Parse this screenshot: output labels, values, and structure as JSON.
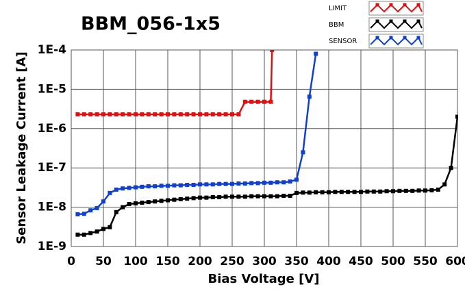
{
  "chart_data": {
    "type": "line",
    "title": "BBM_056-1x5",
    "x_label": "Bias Voltage [V]",
    "y_label": "Sensor Leakage Current [A]",
    "ylog": true,
    "grid": true,
    "legend": "top-right",
    "xlim": [
      0,
      600
    ],
    "xticks": [
      0,
      50,
      100,
      150,
      200,
      250,
      300,
      350,
      400,
      450,
      500,
      550,
      600
    ],
    "ylim": [
      1e-09,
      0.0001
    ],
    "yticks": [
      {
        "value": 1e-09,
        "label": "1E-9"
      },
      {
        "value": 1e-08,
        "label": "1E-8"
      },
      {
        "value": 1e-07,
        "label": "1E-7"
      },
      {
        "value": 1e-06,
        "label": "1E-6"
      },
      {
        "value": 1e-05,
        "label": "1E-5"
      },
      {
        "value": 0.0001,
        "label": "1E-4"
      }
    ],
    "series": [
      {
        "name": "LIMIT",
        "color": "#e01010",
        "x": [
          10,
          20,
          30,
          40,
          50,
          60,
          70,
          80,
          90,
          100,
          110,
          120,
          130,
          140,
          150,
          160,
          170,
          180,
          190,
          200,
          210,
          220,
          230,
          240,
          250,
          260,
          270,
          280,
          290,
          300,
          310,
          312
        ],
        "values": [
          2.3e-06,
          2.3e-06,
          2.3e-06,
          2.3e-06,
          2.3e-06,
          2.3e-06,
          2.3e-06,
          2.3e-06,
          2.3e-06,
          2.3e-06,
          2.3e-06,
          2.3e-06,
          2.3e-06,
          2.3e-06,
          2.3e-06,
          2.3e-06,
          2.3e-06,
          2.3e-06,
          2.3e-06,
          2.3e-06,
          2.3e-06,
          2.3e-06,
          2.3e-06,
          2.3e-06,
          2.3e-06,
          2.3e-06,
          4.8e-06,
          4.8e-06,
          4.8e-06,
          4.8e-06,
          4.8e-06,
          0.0001
        ]
      },
      {
        "name": "BBM",
        "color": "#000000",
        "x": [
          10,
          20,
          30,
          40,
          50,
          60,
          70,
          80,
          90,
          100,
          110,
          120,
          130,
          140,
          150,
          160,
          170,
          180,
          190,
          200,
          210,
          220,
          230,
          240,
          250,
          260,
          270,
          280,
          290,
          300,
          310,
          320,
          330,
          340,
          350,
          360,
          370,
          380,
          390,
          400,
          410,
          420,
          430,
          440,
          450,
          460,
          470,
          480,
          490,
          500,
          510,
          520,
          530,
          540,
          550,
          560,
          570,
          580,
          590,
          600
        ],
        "values": [
          2e-09,
          2e-09,
          2.2e-09,
          2.4e-09,
          2.8e-09,
          3.1e-09,
          7.5e-09,
          1e-08,
          1.2e-08,
          1.25e-08,
          1.3e-08,
          1.35e-08,
          1.4e-08,
          1.45e-08,
          1.5e-08,
          1.55e-08,
          1.6e-08,
          1.65e-08,
          1.7e-08,
          1.75e-08,
          1.75e-08,
          1.8e-08,
          1.8e-08,
          1.85e-08,
          1.85e-08,
          1.85e-08,
          1.85e-08,
          1.9e-08,
          1.9e-08,
          1.9e-08,
          1.9e-08,
          1.9e-08,
          1.95e-08,
          1.95e-08,
          2.3e-08,
          2.35e-08,
          2.35e-08,
          2.4e-08,
          2.4e-08,
          2.4e-08,
          2.45e-08,
          2.45e-08,
          2.45e-08,
          2.45e-08,
          2.45e-08,
          2.5e-08,
          2.5e-08,
          2.5e-08,
          2.55e-08,
          2.55e-08,
          2.6e-08,
          2.6e-08,
          2.6e-08,
          2.65e-08,
          2.65e-08,
          2.7e-08,
          2.8e-08,
          3.8e-08,
          1e-07,
          2e-06
        ]
      },
      {
        "name": "SENSOR",
        "color": "#1040d0",
        "x": [
          10,
          20,
          30,
          40,
          50,
          60,
          70,
          80,
          90,
          100,
          110,
          120,
          130,
          140,
          150,
          160,
          170,
          180,
          190,
          200,
          210,
          220,
          230,
          240,
          250,
          260,
          270,
          280,
          290,
          300,
          310,
          320,
          330,
          340,
          350,
          360,
          370,
          380
        ],
        "values": [
          6.6e-09,
          6.8e-09,
          8.3e-09,
          9.5e-09,
          1.4e-08,
          2.3e-08,
          2.8e-08,
          3e-08,
          3.1e-08,
          3.2e-08,
          3.3e-08,
          3.4e-08,
          3.4e-08,
          3.5e-08,
          3.5e-08,
          3.6e-08,
          3.6e-08,
          3.7e-08,
          3.7e-08,
          3.8e-08,
          3.8e-08,
          3.8e-08,
          3.9e-08,
          3.9e-08,
          3.9e-08,
          4e-08,
          4e-08,
          4.1e-08,
          4.1e-08,
          4.2e-08,
          4.2e-08,
          4.3e-08,
          4.3e-08,
          4.5e-08,
          5e-08,
          2.5e-07,
          6.5e-06,
          8e-05
        ]
      }
    ]
  }
}
